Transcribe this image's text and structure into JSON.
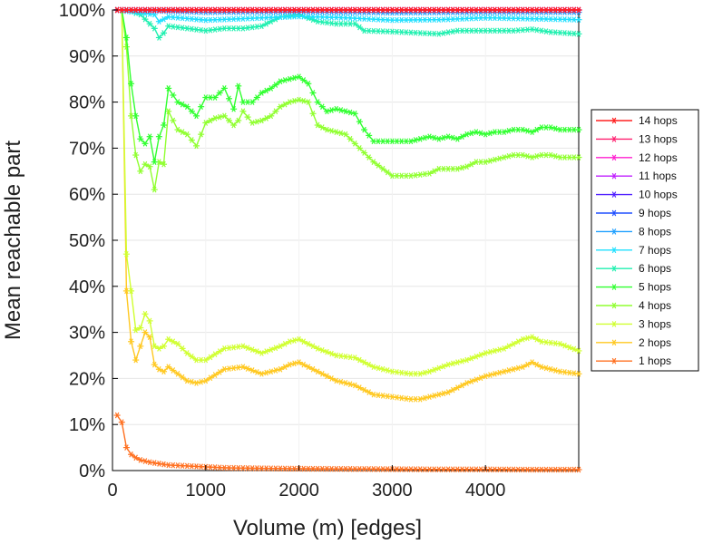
{
  "chart_data": {
    "type": "line",
    "title": "",
    "xlabel": "Volume (m) [edges]",
    "ylabel": "Mean reachable part",
    "xlim": [
      0,
      5000
    ],
    "ylim": [
      0,
      100
    ],
    "x_ticks": [
      0,
      1000,
      2000,
      3000,
      4000
    ],
    "y_ticks": [
      0,
      10,
      20,
      30,
      40,
      50,
      60,
      70,
      80,
      90,
      100
    ],
    "y_tick_labels": [
      "0%",
      "10%",
      "20%",
      "30%",
      "40%",
      "50%",
      "60%",
      "70%",
      "80%",
      "90%",
      "100%"
    ],
    "grid": true,
    "legend_position": "right",
    "marker": "asterisk",
    "series": [
      {
        "name": "14 hops",
        "color": "#ff2020",
        "x": [
          50,
          5000
        ],
        "y": [
          100,
          100
        ]
      },
      {
        "name": "13 hops",
        "color": "#ff2070",
        "x": [
          50,
          5000
        ],
        "y": [
          100,
          100
        ]
      },
      {
        "name": "12 hops",
        "color": "#ff20d0",
        "x": [
          50,
          5000
        ],
        "y": [
          100,
          100
        ]
      },
      {
        "name": "11 hops",
        "color": "#c020ff",
        "x": [
          50,
          5000
        ],
        "y": [
          100,
          100
        ]
      },
      {
        "name": "10 hops",
        "color": "#5020ff",
        "x": [
          50,
          5000
        ],
        "y": [
          100,
          100
        ]
      },
      {
        "name": "9 hops",
        "color": "#2050ff",
        "x": [
          50,
          5000
        ],
        "y": [
          100,
          100
        ]
      },
      {
        "name": "8 hops",
        "color": "#20a0ff",
        "x": [
          50,
          500,
          1000,
          2000,
          3000,
          4000,
          5000
        ],
        "y": [
          100,
          99.8,
          99.5,
          99.6,
          99.4,
          99.5,
          99.5
        ]
      },
      {
        "name": "7 hops",
        "color": "#20e0ff",
        "x": [
          50,
          450,
          500,
          600,
          1000,
          1500,
          2000,
          2500,
          3000,
          3500,
          4000,
          4500,
          5000
        ],
        "y": [
          100,
          99,
          97.5,
          98.5,
          97.8,
          98.2,
          98.6,
          98.3,
          97.8,
          97.9,
          98.3,
          98.1,
          97.9
        ]
      },
      {
        "name": "6 hops",
        "color": "#20f0b0",
        "x": [
          50,
          150,
          300,
          450,
          500,
          550,
          600,
          800,
          1000,
          1200,
          1400,
          1600,
          1800,
          2000,
          2200,
          2400,
          2600,
          2700,
          3000,
          3300,
          3500,
          3700,
          4000,
          4300,
          4500,
          4700,
          5000
        ],
        "y": [
          100,
          100,
          99,
          96,
          94,
          95,
          96.5,
          96,
          95.5,
          96,
          96,
          96.5,
          98.5,
          99,
          97.5,
          97,
          97,
          95.5,
          95.3,
          95,
          94.8,
          95.5,
          95.5,
          95.5,
          95.8,
          95.2,
          94.8
        ]
      },
      {
        "name": "5 hops",
        "color": "#30ff30",
        "x": [
          50,
          100,
          150,
          200,
          250,
          300,
          350,
          400,
          450,
          500,
          550,
          600,
          700,
          800,
          900,
          1000,
          1100,
          1200,
          1300,
          1350,
          1400,
          1500,
          1600,
          1700,
          1800,
          1900,
          2000,
          2100,
          2200,
          2300,
          2400,
          2500,
          2600,
          2700,
          2800,
          3000,
          3200,
          3400,
          3500,
          3600,
          3700,
          3800,
          3900,
          4000,
          4100,
          4200,
          4300,
          4400,
          4500,
          4600,
          4700,
          4800,
          4900,
          5000
        ],
        "y": [
          100,
          100,
          94,
          84,
          77,
          72,
          71,
          72.5,
          67,
          72.5,
          75,
          83,
          80,
          79,
          77,
          81,
          81,
          83,
          78.5,
          83.5,
          80,
          80,
          82,
          83,
          84.5,
          85,
          85.5,
          84,
          80,
          78,
          78.5,
          78,
          77.5,
          74,
          71.5,
          71.5,
          71.5,
          72.5,
          72,
          72.5,
          72,
          73,
          73.5,
          73,
          73.5,
          73.5,
          74,
          74,
          73.5,
          74.5,
          74.5,
          74,
          74,
          74
        ]
      },
      {
        "name": "4 hops",
        "color": "#90ff30",
        "x": [
          50,
          100,
          150,
          200,
          250,
          300,
          350,
          400,
          450,
          500,
          550,
          600,
          700,
          800,
          900,
          1000,
          1100,
          1200,
          1300,
          1350,
          1400,
          1500,
          1600,
          1700,
          1800,
          1900,
          2000,
          2100,
          2200,
          2300,
          2400,
          2500,
          2600,
          2700,
          2800,
          3000,
          3200,
          3400,
          3500,
          3600,
          3700,
          3800,
          3900,
          4000,
          4100,
          4200,
          4300,
          4400,
          4500,
          4600,
          4700,
          4800,
          4900,
          5000
        ],
        "y": [
          100,
          100,
          92,
          77,
          68.5,
          65,
          66.5,
          66,
          61,
          67,
          66.5,
          78,
          74,
          73,
          70.5,
          75.5,
          76.5,
          77,
          75,
          76,
          78,
          75.5,
          76,
          77,
          79,
          80,
          80.5,
          80,
          75,
          74,
          73.5,
          73,
          71,
          69,
          67,
          64,
          64,
          64.5,
          65.5,
          65.5,
          65.5,
          66,
          67,
          67,
          67.5,
          68,
          68.5,
          68.5,
          68,
          68.5,
          68.5,
          68,
          68,
          68
        ]
      },
      {
        "name": "3 hops",
        "color": "#d0ff30",
        "x": [
          50,
          100,
          150,
          200,
          250,
          300,
          350,
          400,
          450,
          500,
          550,
          600,
          700,
          800,
          900,
          1000,
          1200,
          1400,
          1600,
          1800,
          1900,
          2000,
          2200,
          2400,
          2600,
          2800,
          3000,
          3200,
          3300,
          3400,
          3600,
          3800,
          4000,
          4200,
          4400,
          4500,
          4600,
          4800,
          5000
        ],
        "y": [
          100,
          100,
          47,
          39,
          30.5,
          31,
          34,
          32.5,
          27,
          26.5,
          27,
          28.5,
          27.5,
          25.5,
          24,
          24,
          26.5,
          27,
          25.5,
          27,
          28,
          28.5,
          26.5,
          25,
          24.5,
          22.5,
          21.5,
          21,
          21,
          21.5,
          23,
          24,
          25.5,
          26.5,
          28.5,
          29,
          28,
          27.5,
          26
        ]
      },
      {
        "name": "2 hops",
        "color": "#ffc820",
        "x": [
          50,
          100,
          150,
          200,
          250,
          300,
          350,
          400,
          450,
          500,
          550,
          600,
          700,
          800,
          900,
          1000,
          1200,
          1400,
          1600,
          1800,
          1900,
          2000,
          2200,
          2400,
          2600,
          2800,
          3000,
          3200,
          3300,
          3400,
          3600,
          3800,
          4000,
          4200,
          4400,
          4500,
          4600,
          4800,
          5000
        ],
        "y": [
          100,
          100,
          39,
          28,
          24,
          27,
          30,
          29,
          23,
          22,
          21.5,
          22.5,
          21,
          19.5,
          19,
          19.5,
          22,
          22.5,
          21,
          22,
          23,
          23.5,
          21.5,
          19.5,
          18.5,
          16.5,
          16,
          15.5,
          15.5,
          16,
          17,
          19,
          20.5,
          21.5,
          22.5,
          23.5,
          22.5,
          21.5,
          21
        ]
      },
      {
        "name": "1 hops",
        "color": "#ff7020",
        "x": [
          50,
          100,
          150,
          200,
          250,
          300,
          400,
          500,
          600,
          800,
          1000,
          1200,
          1500,
          2000,
          2500,
          3000,
          3500,
          4000,
          4500,
          5000
        ],
        "y": [
          12,
          10.5,
          5,
          3.5,
          2.8,
          2.3,
          1.8,
          1.5,
          1.2,
          1,
          0.8,
          0.6,
          0.5,
          0.4,
          0.35,
          0.3,
          0.25,
          0.25,
          0.2,
          0.2
        ]
      }
    ]
  }
}
